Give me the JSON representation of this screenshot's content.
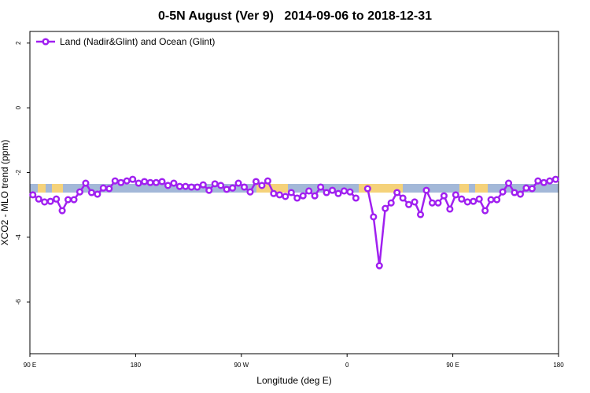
{
  "chart_data": {
    "type": "line",
    "title": "0-5N August (Ver 9)   2014-09-06 to 2018-12-31",
    "x_label": "Longitude (deg E)",
    "y_label": "XCO2 - MLO trend (ppm)",
    "legend": "top-left",
    "x": [
      92.5,
      97.5,
      102.5,
      107.5,
      112.5,
      117.5,
      122.5,
      127.5,
      132.5,
      137.5,
      142.5,
      147.5,
      152.5,
      157.5,
      162.5,
      167.5,
      172.5,
      177.5,
      182.5,
      187.5,
      192.5,
      197.5,
      202.5,
      207.5,
      212.5,
      217.5,
      222.5,
      227.5,
      232.5,
      237.5,
      242.5,
      247.5,
      252.5,
      257.5,
      262.5,
      267.5,
      272.5,
      277.5,
      282.5,
      287.5,
      292.5,
      297.5,
      302.5,
      307.5,
      312.5,
      317.5,
      322.5,
      327.5,
      332.5,
      337.5,
      342.5,
      347.5,
      352.5,
      357.5,
      362.5,
      367.5,
      372.5,
      377.5,
      382.5,
      387.5,
      392.5,
      397.5,
      402.5,
      407.5,
      412.5,
      417.5,
      422.5,
      427.5,
      432.5,
      437.5,
      442.5,
      447.5,
      452.5,
      457.5,
      462.5,
      467.5,
      472.5,
      477.5,
      482.5,
      487.5,
      492.5,
      497.5,
      502.5,
      507.5,
      512.5,
      517.5,
      522.5,
      527.5,
      532.5,
      537.5
    ],
    "series": [
      {
        "name": "Land (Nadir&Glint) and Ocean (Glint)",
        "color": "#a020f0",
        "values": [
          -2.69,
          -2.82,
          -2.91,
          -2.89,
          -2.82,
          -3.18,
          -2.84,
          -2.84,
          -2.6,
          -2.33,
          -2.62,
          -2.67,
          -2.48,
          -2.5,
          -2.26,
          -2.31,
          -2.26,
          -2.21,
          -2.33,
          -2.28,
          -2.31,
          -2.31,
          -2.28,
          -2.4,
          -2.33,
          -2.43,
          -2.43,
          -2.45,
          -2.45,
          -2.38,
          -2.55,
          -2.35,
          -2.4,
          -2.52,
          -2.48,
          -2.33,
          -2.45,
          -2.6,
          -2.28,
          -2.4,
          -2.26,
          -2.65,
          -2.69,
          -2.74,
          -2.62,
          -2.79,
          -2.72,
          -2.57,
          -2.72,
          -2.45,
          -2.62,
          -2.55,
          -2.65,
          -2.57,
          -2.6,
          -2.79,
          null,
          -2.5,
          -3.37,
          -4.88,
          -3.11,
          -2.94,
          -2.62,
          -2.79,
          -2.99,
          -2.91,
          -3.3,
          -2.55,
          -2.94,
          -2.94,
          -2.72,
          -3.13,
          -2.69,
          -2.82,
          -2.91,
          -2.89,
          -2.82,
          -3.18,
          -2.84,
          -2.84,
          -2.6,
          -2.33,
          -2.62,
          -2.67,
          -2.48,
          -2.5,
          -2.26,
          -2.31,
          -2.26,
          -2.21
        ]
      }
    ],
    "xlim": [
      90,
      540
    ],
    "xticks": [
      {
        "value": 90,
        "label": "90 E"
      },
      {
        "value": 180,
        "label": "180"
      },
      {
        "value": 270,
        "label": "90 W"
      },
      {
        "value": 360,
        "label": "0"
      },
      {
        "value": 450,
        "label": "90 E"
      },
      {
        "value": 540,
        "label": "180"
      }
    ],
    "ylim": [
      -7.6,
      2.36
    ],
    "yticks": [
      2,
      0,
      -2,
      -4,
      -6
    ]
  }
}
